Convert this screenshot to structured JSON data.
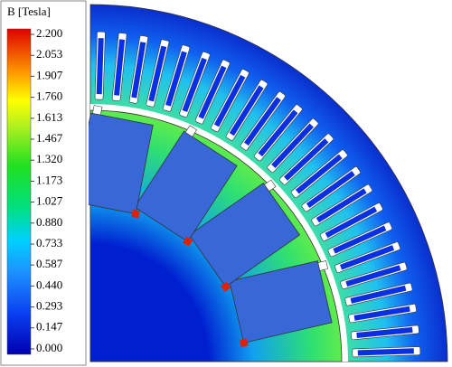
{
  "legend": {
    "title": "B [Tesla]",
    "lim": [
      0,
      2.2
    ],
    "ticks": [
      {
        "value": 2.2,
        "label": "2.200"
      },
      {
        "value": 2.053,
        "label": "2.053"
      },
      {
        "value": 1.907,
        "label": "1.907"
      },
      {
        "value": 1.76,
        "label": "1.760"
      },
      {
        "value": 1.613,
        "label": "1.613"
      },
      {
        "value": 1.467,
        "label": "1.467"
      },
      {
        "value": 1.32,
        "label": "1.320"
      },
      {
        "value": 1.173,
        "label": "1.173"
      },
      {
        "value": 1.027,
        "label": "1.027"
      },
      {
        "value": 0.88,
        "label": "0.880"
      },
      {
        "value": 0.733,
        "label": "0.733"
      },
      {
        "value": 0.587,
        "label": "0.587"
      },
      {
        "value": 0.44,
        "label": "0.440"
      },
      {
        "value": 0.293,
        "label": "0.293"
      },
      {
        "value": 0.147,
        "label": "0.147"
      },
      {
        "value": 0,
        "label": "0.000"
      }
    ]
  }
}
